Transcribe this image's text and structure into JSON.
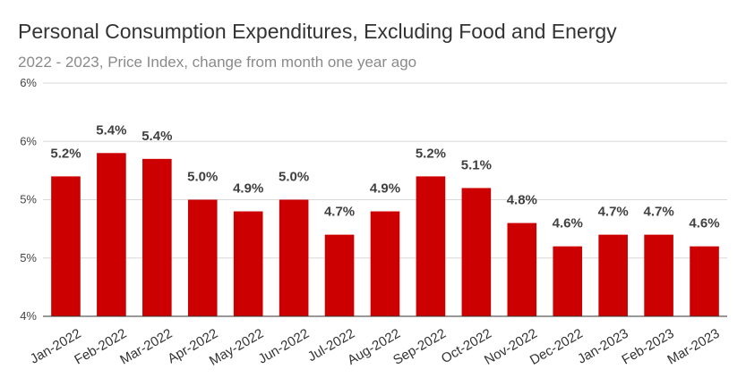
{
  "chart_data": {
    "type": "bar",
    "title": "Personal Consumption Expenditures, Excluding Food and Energy",
    "subtitle": "2022 - 2023, Price Index, change from month one year ago",
    "categories": [
      "Jan-2022",
      "Feb-2022",
      "Mar-2022",
      "Apr-2022",
      "May-2022",
      "Jun-2022",
      "Jul-2022",
      "Aug-2022",
      "Sep-2022",
      "Oct-2022",
      "Nov-2022",
      "Dec-2022",
      "Jan-2023",
      "Feb-2023",
      "Mar-2023"
    ],
    "values": [
      5.2,
      5.4,
      5.35,
      5.0,
      4.9,
      5.0,
      4.7,
      4.9,
      5.2,
      5.1,
      4.8,
      4.6,
      4.7,
      4.7,
      4.6
    ],
    "data_labels": [
      "5.2%",
      "5.4%",
      "5.4%",
      "5.0%",
      "4.9%",
      "5.0%",
      "4.7%",
      "4.9%",
      "5.2%",
      "5.1%",
      "4.8%",
      "4.6%",
      "4.7%",
      "4.7%",
      "4.6%"
    ],
    "y_ticks": [
      4,
      4.5,
      5,
      5.5,
      6
    ],
    "y_tick_labels": [
      "4%",
      "5%",
      "5%",
      "6%",
      "6%"
    ],
    "ylim": [
      4,
      6
    ],
    "xlabel": "",
    "ylabel": "",
    "grid": true,
    "bar_color": "#cc0000"
  }
}
